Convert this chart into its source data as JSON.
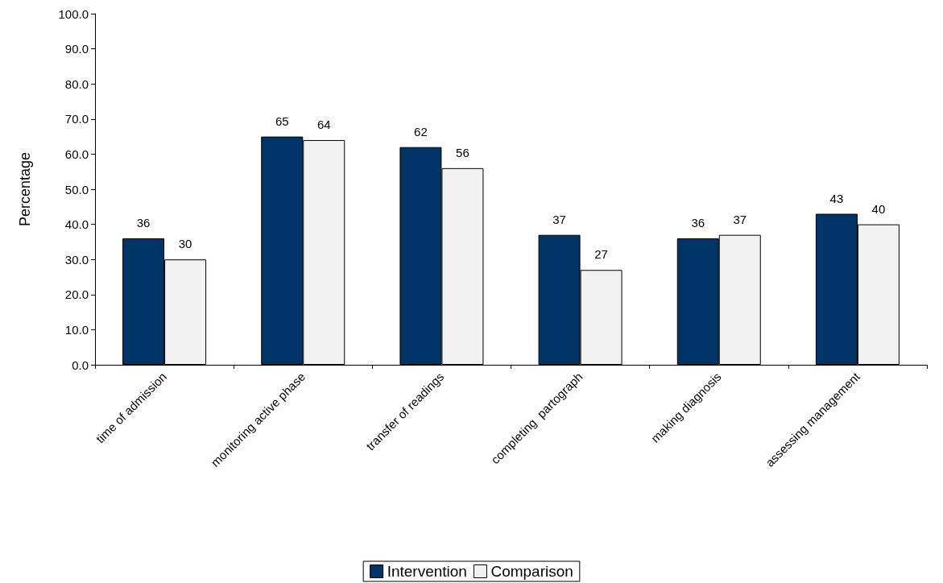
{
  "chart_data": {
    "type": "bar",
    "ylabel": "Percentage",
    "categories": [
      "time of admission",
      "monitoring active phase",
      "transfer of readings",
      "completing  partograph",
      "making diagnosis",
      "assessing management"
    ],
    "series": [
      {
        "name": "Intervention",
        "color": "#003366",
        "values": [
          36,
          65,
          62,
          37,
          36,
          43
        ]
      },
      {
        "name": "Comparison",
        "color": "#f2f2f2",
        "values": [
          30,
          64,
          56,
          27,
          37,
          40
        ]
      }
    ],
    "ylim": [
      0,
      100
    ],
    "yticks": [
      {
        "value": 0,
        "label": "0.0"
      },
      {
        "value": 10,
        "label": "10.0"
      },
      {
        "value": 20,
        "label": "20.0"
      },
      {
        "value": 30,
        "label": "30.0"
      },
      {
        "value": 40,
        "label": "40.0"
      },
      {
        "value": 50,
        "label": "50.0"
      },
      {
        "value": 60,
        "label": "60.0"
      },
      {
        "value": 70,
        "label": "70.0"
      },
      {
        "value": 80,
        "label": "80.0"
      },
      {
        "value": 90,
        "label": "90.0"
      },
      {
        "value": 100,
        "label": "100.0"
      }
    ],
    "data_labels": true,
    "grid": false,
    "legend": "bottom"
  }
}
